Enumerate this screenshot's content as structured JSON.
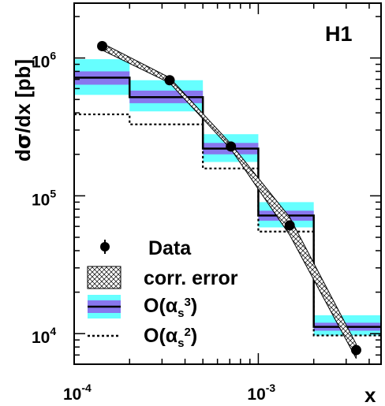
{
  "chart_data": {
    "type": "line",
    "brand_label": "H1",
    "xlabel": "x",
    "ylabel_parts": {
      "d1": "d",
      "sigma": "σ",
      "rest": "/dx [pb]"
    },
    "x_scale": "log",
    "y_scale": "log",
    "xlim": [
      0.0001,
      0.00464
    ],
    "ylim": [
      6000,
      2500000
    ],
    "x_ticks": [
      {
        "value": 0.0001,
        "base": "10",
        "exp": "-4"
      },
      {
        "value": 0.001,
        "base": "10",
        "exp": "-3"
      }
    ],
    "y_ticks": [
      {
        "value": 10000,
        "base": "10",
        "exp": "4"
      },
      {
        "value": 100000,
        "base": "10",
        "exp": "5"
      },
      {
        "value": 1000000,
        "base": "10",
        "exp": "6"
      }
    ],
    "data_points": {
      "name": "Data",
      "x": [
        0.000142,
        0.00033,
        0.00071,
        0.00148,
        0.0034
      ],
      "y": [
        1220000,
        690000,
        228000,
        61000,
        7600
      ]
    },
    "corr_error_band": {
      "name": "corr. error",
      "x": [
        0.000142,
        0.00033,
        0.00071,
        0.00148,
        0.0034
      ],
      "y_low": [
        1140000,
        660000,
        218000,
        52000,
        6600
      ],
      "y_high": [
        1280000,
        720000,
        238000,
        70000,
        8400
      ]
    },
    "nlo_alpha_s3": {
      "name_main": "O(α",
      "name_sub": "s",
      "name_sup": "3",
      "name_close": ")",
      "bin_edges": [
        0.0001,
        0.0002,
        0.0005,
        0.001,
        0.002,
        0.00464
      ],
      "central": [
        720000,
        520000,
        220000,
        72000,
        11200
      ],
      "inner_low": [
        640000,
        470000,
        200000,
        66000,
        10500
      ],
      "inner_high": [
        800000,
        580000,
        242000,
        78000,
        12000
      ],
      "outer_low": [
        540000,
        410000,
        176000,
        59000,
        9700
      ],
      "outer_high": [
        980000,
        690000,
        280000,
        90000,
        13600
      ]
    },
    "lo_alpha_s2": {
      "name_main": "O(α",
      "name_sub": "s",
      "name_sup": "2",
      "name_close": ")",
      "bin_edges": [
        0.0001,
        0.0002,
        0.0005,
        0.001,
        0.002,
        0.00464
      ],
      "values": [
        390000,
        330000,
        158000,
        55000,
        9700
      ]
    },
    "colors": {
      "outer_band": "#66ffff",
      "inner_band": "#8877ee",
      "line": "#000000",
      "marker": "#000000"
    },
    "grid": false,
    "legend_position": "bottom-left"
  }
}
